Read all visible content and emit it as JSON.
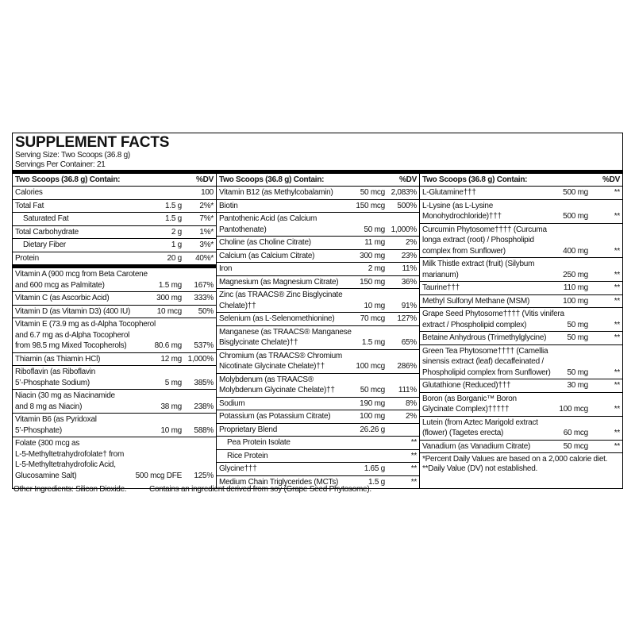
{
  "title": "SUPPLEMENT FACTS",
  "serving_size": "Serving Size: Two Scoops (36.8 g)",
  "servings_per_container": "Servings Per Container: 21",
  "columns": [
    {
      "header": "Two Scoops (36.8 g) Contain:",
      "dv_header": "%DV",
      "sections": [
        [
          {
            "name": [
              "Calories"
            ],
            "dv": "100"
          },
          {
            "name": [
              "Total Fat"
            ],
            "amount": "1.5 g",
            "dv": "2%*"
          },
          {
            "name": [
              "Saturated Fat"
            ],
            "amount": "1.5 g",
            "dv": "7%*",
            "indent": true
          },
          {
            "name": [
              "Total Carbohydrate"
            ],
            "amount": "2 g",
            "dv": "1%*"
          },
          {
            "name": [
              "Dietary Fiber"
            ],
            "amount": "1 g",
            "dv": "3%*",
            "indent": true
          },
          {
            "name": [
              "Protein"
            ],
            "amount": "20 g",
            "dv": "40%*"
          }
        ],
        [
          {
            "name": [
              "Vitamin A (900 mcg from Beta Carotene",
              "and 600 mcg as Palmitate)"
            ],
            "amount": "1.5 mg",
            "dv": "167%"
          },
          {
            "name": [
              "Vitamin C (as Ascorbic Acid)"
            ],
            "amount": "300 mg",
            "dv": "333%"
          },
          {
            "name": [
              "Vitamin D (as Vitamin D3) (400 IU)"
            ],
            "amount": "10 mcg",
            "dv": "50%"
          },
          {
            "name": [
              "Vitamin E (73.9 mg as d-Alpha Tocopherol",
              "and 6.7 mg as d-Alpha Tocopherol",
              "from 98.5 mg Mixed Tocopherols)"
            ],
            "amount": "80.6 mg",
            "dv": "537%"
          },
          {
            "name": [
              "Thiamin (as Thiamin HCl)"
            ],
            "amount": "12 mg",
            "dv": "1,000%"
          },
          {
            "name": [
              "Riboflavin (as Riboflavin",
              "5’-Phosphate Sodium)"
            ],
            "amount": "5 mg",
            "dv": "385%"
          },
          {
            "name": [
              "Niacin (30 mg as Niacinamide",
              "and 8 mg as Niacin)"
            ],
            "amount": "38 mg",
            "dv": "238%"
          },
          {
            "name": [
              "Vitamin B6 (as Pyridoxal",
              "5’-Phosphate)"
            ],
            "amount": "10 mg",
            "dv": "588%"
          },
          {
            "name": [
              "Folate (300 mcg as",
              "L-5-Methyltetrahydrofolate† from",
              "L-5-Methyltetrahydrofolic Acid,",
              "Glucosamine Salt)"
            ],
            "amount": "500 mcg DFE",
            "dv": "125%"
          }
        ]
      ]
    },
    {
      "header": "Two Scoops (36.8 g) Contain:",
      "dv_header": "%DV",
      "sections": [
        [
          {
            "name": [
              "Vitamin B12 (as Methylcobalamin)"
            ],
            "amount": "50 mcg",
            "dv": "2,083%"
          },
          {
            "name": [
              "Biotin"
            ],
            "amount": "150 mcg",
            "dv": "500%"
          },
          {
            "name": [
              "Pantothenic Acid (as Calcium",
              "Pantothenate)"
            ],
            "amount": "50 mg",
            "dv": "1,000%"
          },
          {
            "name": [
              "Choline (as Choline Citrate)"
            ],
            "amount": "11 mg",
            "dv": "2%"
          },
          {
            "name": [
              "Calcium (as Calcium Citrate)"
            ],
            "amount": "300 mg",
            "dv": "23%"
          },
          {
            "name": [
              "Iron"
            ],
            "amount": "2 mg",
            "dv": "11%"
          },
          {
            "name": [
              "Magnesium (as Magnesium Citrate)"
            ],
            "amount": "150 mg",
            "dv": "36%"
          },
          {
            "name": [
              "Zinc (as TRAACS® Zinc Bisglycinate",
              "Chelate)††"
            ],
            "amount": "10 mg",
            "dv": "91%"
          },
          {
            "name": [
              "Selenium (as L-Selenomethionine)"
            ],
            "amount": "70 mcg",
            "dv": "127%"
          },
          {
            "name": [
              "Manganese (as TRAACS® Manganese",
              "Bisglycinate Chelate)††"
            ],
            "amount": "1.5 mg",
            "dv": "65%"
          },
          {
            "name": [
              "Chromium (as TRAACS® Chromium",
              "Nicotinate Glycinate Chelate)††"
            ],
            "amount": "100 mcg",
            "dv": "286%"
          },
          {
            "name": [
              "Molybdenum (as TRAACS®",
              "Molybdenum Glycinate Chelate)††"
            ],
            "amount": "50 mcg",
            "dv": "111%"
          },
          {
            "name": [
              "Sodium"
            ],
            "amount": "190 mg",
            "dv": "8%"
          },
          {
            "name": [
              "Potassium (as Potassium Citrate)"
            ],
            "amount": "100 mg",
            "dv": "2%"
          },
          {
            "name": [
              "Proprietary Blend"
            ],
            "amount": "26.26 g"
          },
          {
            "name": [
              "Pea Protein Isolate"
            ],
            "dv": "**",
            "indent": true
          },
          {
            "name": [
              "Rice Protein"
            ],
            "dv": "**",
            "indent": true
          },
          {
            "name": [
              "Glycine†††"
            ],
            "amount": "1.65 g",
            "dv": "**"
          },
          {
            "name": [
              "Medium Chain Triglycerides (MCTs)"
            ],
            "amount": "1.5 g",
            "dv": "**"
          }
        ]
      ]
    },
    {
      "header": "Two Scoops (36.8 g) Contain:",
      "dv_header": "%DV",
      "sections": [
        [
          {
            "name": [
              "L-Glutamine†††"
            ],
            "amount": "500 mg",
            "dv": "**"
          },
          {
            "name": [
              "L-Lysine (as L-Lysine",
              "Monohydrochloride)†††"
            ],
            "amount": "500 mg",
            "dv": "**"
          },
          {
            "name": [
              "Curcumin Phytosome†††† (Curcuma",
              "longa extract (root) / Phospholipid",
              "complex from Sunflower)"
            ],
            "amount": "400 mg",
            "dv": "**"
          },
          {
            "name": [
              "Milk Thistle extract (fruit) (Silybum",
              "marianum)"
            ],
            "amount": "250 mg",
            "dv": "**"
          },
          {
            "name": [
              "Taurine†††"
            ],
            "amount": "110 mg",
            "dv": "**"
          },
          {
            "name": [
              "Methyl Sulfonyl Methane (MSM)"
            ],
            "amount": "100 mg",
            "dv": "**"
          },
          {
            "name": [
              "Grape Seed Phytosome†††† (Vitis vinifera",
              "extract / Phospholipid complex)"
            ],
            "amount": "50 mg",
            "dv": "**"
          },
          {
            "name": [
              "Betaine Anhydrous (Trimethylglycine)"
            ],
            "amount": "50 mg",
            "dv": "**"
          },
          {
            "name": [
              "Green Tea Phytosome†††† (Camellia",
              "sinensis extract (leaf) decaffeinated /",
              "Phospholipid complex from Sunflower)"
            ],
            "amount": "50 mg",
            "dv": "**"
          },
          {
            "name": [
              "Glutathione (Reduced)†††"
            ],
            "amount": "30 mg",
            "dv": "**"
          },
          {
            "name": [
              "Boron (as Borganic™ Boron",
              "Glycinate Complex)†††††"
            ],
            "amount": "100 mcg",
            "dv": "**"
          },
          {
            "name": [
              "Lutein (from Aztec Marigold extract",
              "(flower) (Tagetes erecta)"
            ],
            "amount": "60 mcg",
            "dv": "**"
          },
          {
            "name": [
              "Vanadium (as Vanadium Citrate)"
            ],
            "amount": "50 mcg",
            "dv": "**"
          }
        ]
      ],
      "footnotes": [
        "*Percent Daily Values are based on a 2,000 calorie diet.",
        "**Daily Value (DV) not established."
      ]
    }
  ],
  "other_ingredients": "Other Ingredients: Silicon Dioxide.",
  "allergen_note": "Contains an ingredient derived from soy (Grape Seed Phytosome)."
}
